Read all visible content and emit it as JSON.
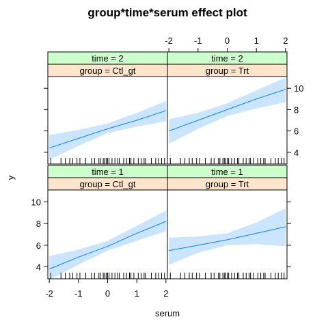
{
  "colors": {
    "strip_time": "#ccffcc",
    "strip_group": "#ffe5cc",
    "band": "#cce5ff",
    "line": "#0080ff",
    "frame": "#000000"
  },
  "chart_data": {
    "type": "line",
    "title": "group*time*serum effect plot",
    "xlabel": "serum",
    "ylabel": "y",
    "xlim": [
      -2.05,
      2.05
    ],
    "ylim": [
      2.9,
      11.1
    ],
    "x_ticks": [
      -2,
      -1,
      0,
      1,
      2
    ],
    "y_ticks": [
      4,
      6,
      8,
      10
    ],
    "panels": [
      {
        "time_label": "time = 2",
        "group_label": "group = Ctl_gt",
        "x": [
          -2,
          -1,
          0,
          1,
          2
        ],
        "fit": [
          4.4,
          5.3,
          6.2,
          7.0,
          7.9
        ],
        "lower": [
          3.3,
          4.6,
          5.8,
          6.4,
          6.9
        ],
        "upper": [
          5.6,
          6.1,
          6.7,
          7.7,
          8.8
        ]
      },
      {
        "time_label": "time = 2",
        "group_label": "group = Trt",
        "x": [
          -2,
          -1,
          0,
          1,
          2
        ],
        "fit": [
          6.0,
          7.0,
          8.0,
          9.0,
          9.9
        ],
        "lower": [
          4.8,
          6.2,
          7.4,
          8.1,
          8.7
        ],
        "upper": [
          7.1,
          7.7,
          8.6,
          9.8,
          11.0
        ]
      },
      {
        "time_label": "time = 1",
        "group_label": "group = Ctl_gt",
        "x": [
          -2,
          -1,
          0,
          1,
          2
        ],
        "fit": [
          3.8,
          4.9,
          5.9,
          7.1,
          8.2
        ],
        "lower": [
          2.8,
          4.2,
          5.5,
          6.4,
          7.3
        ],
        "upper": [
          5.0,
          5.6,
          6.4,
          7.8,
          9.2
        ]
      },
      {
        "time_label": "time = 1",
        "group_label": "group = Trt",
        "x": [
          -2,
          -1,
          0,
          1,
          2
        ],
        "fit": [
          5.5,
          6.0,
          6.5,
          7.1,
          7.7
        ],
        "lower": [
          4.2,
          5.3,
          6.0,
          6.1,
          5.9
        ],
        "upper": [
          6.7,
          6.8,
          7.1,
          8.1,
          9.4
        ]
      }
    ],
    "rug_x": [
      -1.95,
      -1.6,
      -1.45,
      -1.3,
      -1.2,
      -1.05,
      -0.95,
      -0.75,
      -0.55,
      -0.45,
      -0.3,
      -0.25,
      -0.15,
      -0.1,
      -0.05,
      0.0,
      0.05,
      0.15,
      0.25,
      0.35,
      0.4,
      0.55,
      0.65,
      0.75,
      0.8,
      0.9,
      1.05,
      1.15,
      1.25,
      1.3,
      1.5,
      1.65,
      1.75,
      1.85,
      1.95
    ]
  }
}
